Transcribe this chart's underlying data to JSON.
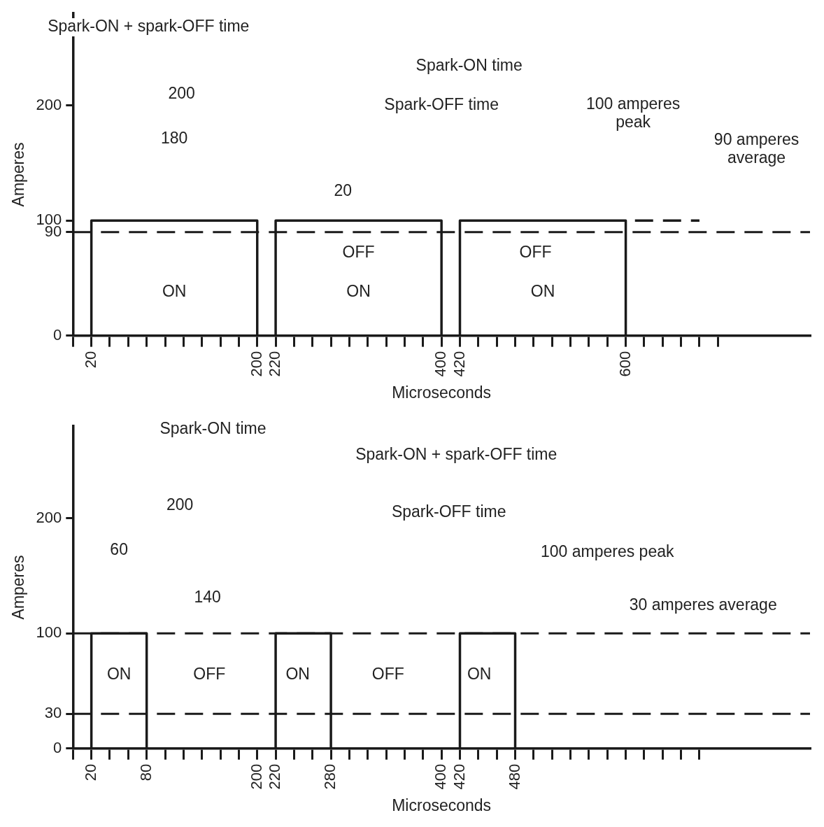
{
  "chart_data": [
    {
      "type": "line",
      "xlabel": "Microseconds",
      "ylabel": "Amperes",
      "xlim": [
        0,
        800
      ],
      "ylim": [
        0,
        280
      ],
      "xticks": [
        {
          "value": 0,
          "label": null
        },
        20,
        {
          "value": 40,
          "label": null
        },
        {
          "value": 60,
          "label": null
        },
        {
          "value": 80,
          "label": null
        },
        {
          "value": 100,
          "label": null
        },
        {
          "value": 120,
          "label": null
        },
        {
          "value": 140,
          "label": null
        },
        {
          "value": 160,
          "label": null
        },
        {
          "value": 180,
          "label": null
        },
        200,
        220,
        {
          "value": 240,
          "label": null
        },
        {
          "value": 260,
          "label": null
        },
        {
          "value": 280,
          "label": null
        },
        {
          "value": 300,
          "label": null
        },
        {
          "value": 320,
          "label": null
        },
        {
          "value": 340,
          "label": null
        },
        {
          "value": 360,
          "label": null
        },
        {
          "value": 380,
          "label": null
        },
        400,
        420,
        {
          "value": 440,
          "label": null
        },
        {
          "value": 460,
          "label": null
        },
        {
          "value": 480,
          "label": null
        },
        {
          "value": 500,
          "label": null
        },
        {
          "value": 520,
          "label": null
        },
        {
          "value": 540,
          "label": null
        },
        {
          "value": 560,
          "label": null
        },
        {
          "value": 580,
          "label": null
        },
        600,
        {
          "value": 620,
          "label": null
        },
        {
          "value": 640,
          "label": null
        },
        {
          "value": 660,
          "label": null
        },
        {
          "value": 680,
          "label": null
        },
        {
          "value": 700,
          "label": null
        }
      ],
      "yticks": [
        0,
        90,
        100,
        200
      ],
      "marker": "none",
      "legend": false,
      "grid": false,
      "series": [
        {
          "color": "#1a1a1a",
          "x": [
            20,
            20,
            200,
            200,
            220,
            220,
            400,
            400,
            420,
            420,
            600,
            600
          ],
          "values": [
            0,
            100,
            100,
            0,
            0,
            100,
            100,
            0,
            0,
            100,
            100,
            0
          ]
        },
        {
          "color": "#1a1a1a",
          "line_style": "dashed",
          "x": [
            610,
            680
          ],
          "values": [
            100,
            100
          ]
        }
      ],
      "ref_lines": [
        {
          "axis": "y",
          "value": 90,
          "line_style": "dashed",
          "color": "#1a1a1a"
        }
      ],
      "annotations": [
        "Spark-ON + spark-OFF time",
        "200",
        "Spark-ON time",
        "Spark-OFF time",
        "180",
        "20",
        "100 amperes\npeak",
        "90 amperes\naverage",
        "OFF",
        "OFF",
        "ON",
        "ON",
        "ON"
      ]
    },
    {
      "type": "line",
      "xlabel": "Microseconds",
      "ylabel": "Amperes",
      "xlim": [
        0,
        800
      ],
      "ylim": [
        0,
        280
      ],
      "xticks": [
        {
          "value": 0,
          "label": null
        },
        20,
        {
          "value": 40,
          "label": null
        },
        {
          "value": 60,
          "label": null
        },
        80,
        {
          "value": 100,
          "label": null
        },
        {
          "value": 120,
          "label": null
        },
        {
          "value": 140,
          "label": null
        },
        {
          "value": 160,
          "label": null
        },
        {
          "value": 180,
          "label": null
        },
        200,
        220,
        {
          "value": 240,
          "label": null
        },
        {
          "value": 260,
          "label": null
        },
        280,
        {
          "value": 300,
          "label": null
        },
        {
          "value": 320,
          "label": null
        },
        {
          "value": 340,
          "label": null
        },
        {
          "value": 360,
          "label": null
        },
        {
          "value": 380,
          "label": null
        },
        400,
        420,
        {
          "value": 440,
          "label": null
        },
        {
          "value": 460,
          "label": null
        },
        480,
        {
          "value": 500,
          "label": null
        },
        {
          "value": 520,
          "label": null
        },
        {
          "value": 540,
          "label": null
        },
        {
          "value": 560,
          "label": null
        },
        {
          "value": 580,
          "label": null
        },
        {
          "value": 600,
          "label": null
        },
        {
          "value": 620,
          "label": null
        },
        {
          "value": 640,
          "label": null
        },
        {
          "value": 660,
          "label": null
        },
        {
          "value": 680,
          "label": null
        }
      ],
      "yticks": [
        0,
        30,
        100,
        200
      ],
      "marker": "none",
      "legend": false,
      "grid": false,
      "series": [
        {
          "color": "#1a1a1a",
          "x": [
            20,
            20,
            80,
            80,
            220,
            220,
            280,
            280,
            420,
            420,
            480,
            480
          ],
          "values": [
            0,
            100,
            100,
            0,
            0,
            100,
            100,
            0,
            0,
            100,
            100,
            0
          ]
        }
      ],
      "ref_lines": [
        {
          "axis": "y",
          "value": 100,
          "line_style": "dashed",
          "color": "#1a1a1a"
        },
        {
          "axis": "y",
          "value": 30,
          "line_style": "dashed",
          "color": "#1a1a1a"
        }
      ],
      "annotations": [
        "Spark-ON time",
        "Spark-ON + spark-OFF time",
        "200",
        "Spark-OFF time",
        "60",
        "100 amperes peak",
        "140",
        "30 amperes average",
        "ON",
        "OFF",
        "ON",
        "OFF",
        "ON"
      ]
    }
  ]
}
